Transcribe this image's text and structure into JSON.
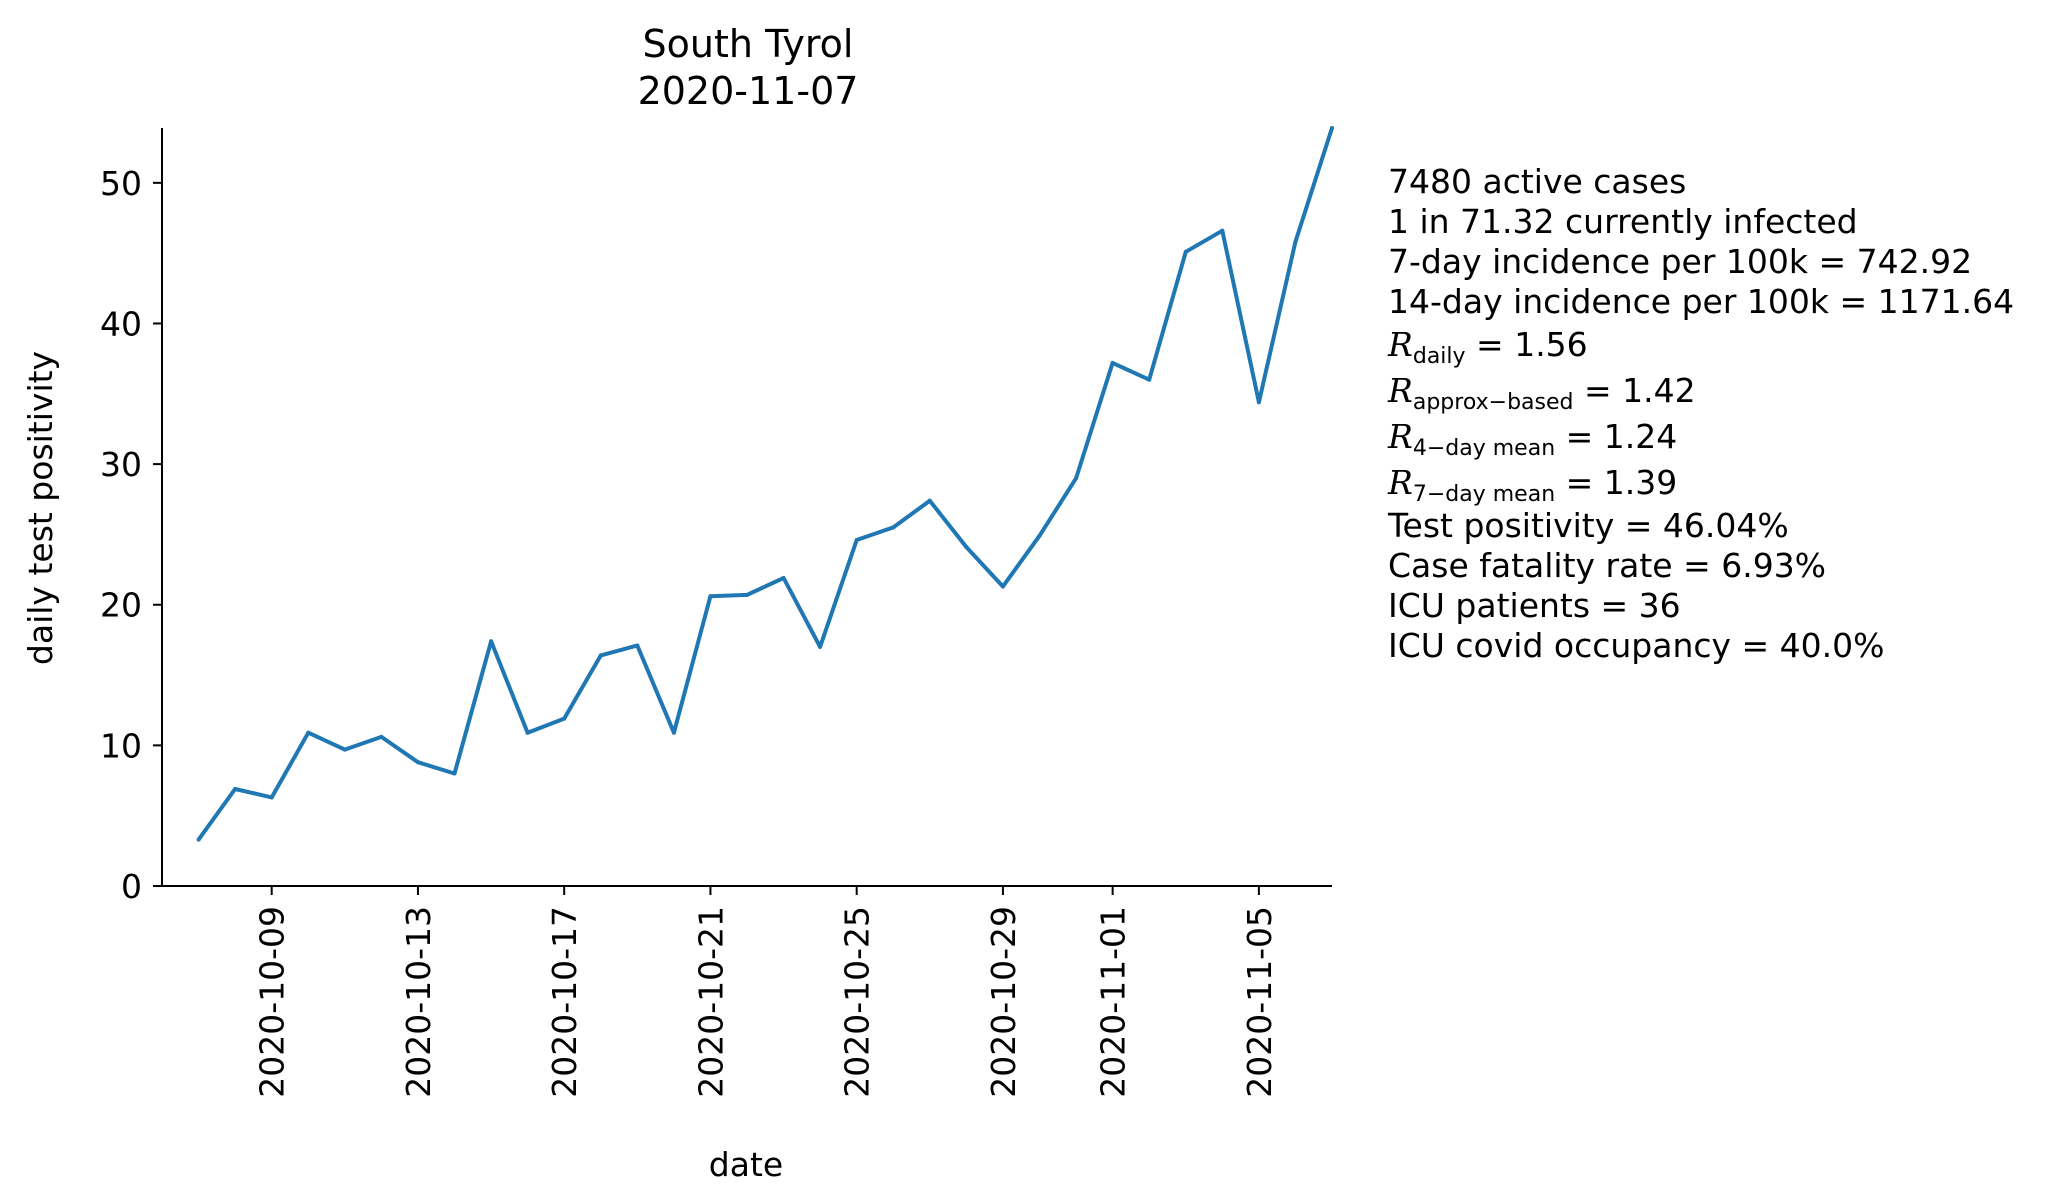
{
  "chart_data": {
    "type": "line",
    "title": "South Tyrol",
    "subtitle": "2020-11-07",
    "xlabel": "date",
    "ylabel": "daily test positivity",
    "x": [
      "2020-10-07",
      "2020-10-08",
      "2020-10-09",
      "2020-10-10",
      "2020-10-11",
      "2020-10-12",
      "2020-10-13",
      "2020-10-14",
      "2020-10-15",
      "2020-10-16",
      "2020-10-17",
      "2020-10-18",
      "2020-10-19",
      "2020-10-20",
      "2020-10-21",
      "2020-10-22",
      "2020-10-23",
      "2020-10-24",
      "2020-10-25",
      "2020-10-26",
      "2020-10-27",
      "2020-10-28",
      "2020-10-29",
      "2020-10-30",
      "2020-10-31",
      "2020-11-01",
      "2020-11-02",
      "2020-11-03",
      "2020-11-04",
      "2020-11-05",
      "2020-11-06",
      "2020-11-07"
    ],
    "series": [
      {
        "values": [
          3.3,
          6.9,
          6.3,
          10.9,
          9.7,
          10.6,
          8.8,
          8.0,
          17.4,
          10.9,
          11.9,
          16.4,
          17.1,
          10.9,
          20.6,
          20.7,
          21.9,
          17.0,
          24.6,
          25.5,
          27.4,
          24.1,
          21.3,
          24.9,
          29.0,
          37.2,
          36.0,
          45.1,
          46.6,
          34.4,
          45.8,
          53.9
        ]
      }
    ],
    "last_value": 46.04,
    "xlim": [
      "2020-10-06",
      "2020-11-07"
    ],
    "ylim": [
      0,
      53.9
    ],
    "yticks": [
      0,
      10,
      20,
      30,
      40,
      50
    ],
    "xticks": [
      "2020-10-09",
      "2020-10-13",
      "2020-10-17",
      "2020-10-21",
      "2020-10-25",
      "2020-10-29",
      "2020-11-01",
      "2020-11-05"
    ],
    "line_color": "#1f77b4",
    "grid": false,
    "legend": "none"
  },
  "stats": {
    "active_cases": "7480 active cases",
    "infected_ratio": "1 in 71.32 currently infected",
    "incidence_7": "7-day incidence per 100k = 742.92",
    "incidence_14": "14-day incidence per 100k = 1171.64",
    "r_symbol": "R",
    "r_daily_sub": "daily",
    "r_daily_val": " = 1.56",
    "r_approx_sub": "approx−based",
    "r_approx_val": " = 1.42",
    "r_4day_sub": "4−day mean",
    "r_4day_val": " = 1.24",
    "r_7day_sub": "7−day mean",
    "r_7day_val": " = 1.39",
    "test_positivity": "Test positivity = 46.04%",
    "case_fatality": "Case fatality rate = 6.93%",
    "icu_patients": "ICU patients = 36",
    "icu_occupancy": "ICU covid occupancy = 40.0%"
  }
}
